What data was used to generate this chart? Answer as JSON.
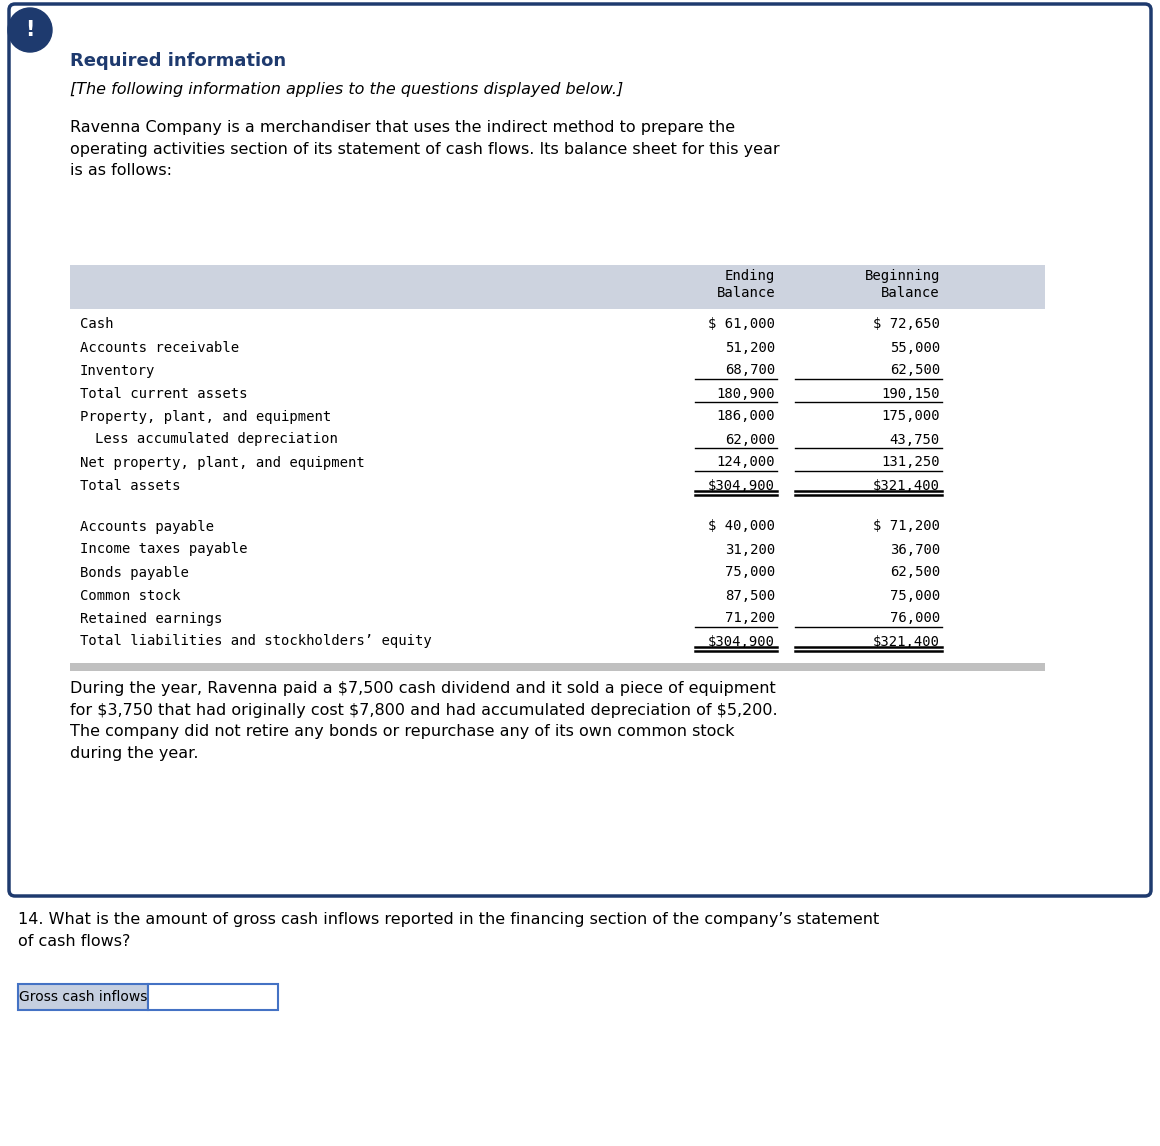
{
  "title_bold": "Required information",
  "subtitle_italic": "[The following information applies to the questions displayed below.]",
  "intro_text": "Ravenna Company is a merchandiser that uses the indirect method to prepare the\noperating activities section of its statement of cash flows. Its balance sheet for this year\nis as follows:",
  "table_rows": [
    [
      "Cash",
      "$ 61,000",
      "$ 72,650",
      false,
      false
    ],
    [
      "Accounts receivable",
      "51,200",
      "55,000",
      false,
      false
    ],
    [
      "Inventory",
      "68,700",
      "62,500",
      true,
      false
    ],
    [
      "Total current assets",
      "180,900",
      "190,150",
      true,
      false
    ],
    [
      "Property, plant, and equipment",
      "186,000",
      "175,000",
      false,
      false
    ],
    [
      "  Less accumulated depreciation",
      "62,000",
      "43,750",
      true,
      false
    ],
    [
      "Net property, plant, and equipment",
      "124,000",
      "131,250",
      true,
      false
    ],
    [
      "Total assets",
      "$304,900",
      "$321,400",
      false,
      true
    ]
  ],
  "table_rows2": [
    [
      "Accounts payable",
      "$ 40,000",
      "$ 71,200",
      false,
      false
    ],
    [
      "Income taxes payable",
      "31,200",
      "36,700",
      false,
      false
    ],
    [
      "Bonds payable",
      "75,000",
      "62,500",
      false,
      false
    ],
    [
      "Common stock",
      "87,500",
      "75,000",
      false,
      false
    ],
    [
      "Retained earnings",
      "71,200",
      "76,000",
      true,
      false
    ],
    [
      "Total liabilities and stockholders’ equity",
      "$304,900",
      "$321,400",
      false,
      true
    ]
  ],
  "footer_text": "During the year, Ravenna paid a $7,500 cash dividend and it sold a piece of equipment\nfor $3,750 that had originally cost $7,800 and had accumulated depreciation of $5,200.\nThe company did not retire any bonds or repurchase any of its own common stock\nduring the year.",
  "question_text": "14. What is the amount of gross cash inflows reported in the financing section of the company’s statement\nof cash flows?",
  "answer_label": "Gross cash inflows",
  "header_bg": "#cdd3df",
  "outer_border_color": "#1e3a6e",
  "icon_bg": "#1e3a6e",
  "icon_text": "!",
  "title_color": "#1e3a6e",
  "body_text_color": "#000000",
  "answer_box_border": "#4472c4",
  "answer_label_bg": "#c5cfe0",
  "gray_bar_color": "#c0c0c0"
}
